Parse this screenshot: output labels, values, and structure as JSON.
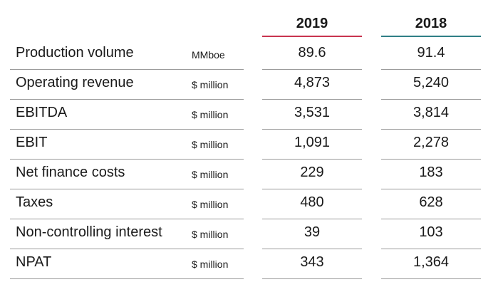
{
  "columns": [
    {
      "label": "2019",
      "accent": "#c8344f"
    },
    {
      "label": "2018",
      "accent": "#2f7f86"
    }
  ],
  "rows": [
    {
      "label": "Production volume",
      "unit": "MMboe",
      "v2019": "89.6",
      "v2018": "91.4"
    },
    {
      "label": "Operating revenue",
      "unit": "$ million",
      "v2019": "4,873",
      "v2018": "5,240"
    },
    {
      "label": "EBITDA",
      "unit": "$ million",
      "v2019": "3,531",
      "v2018": "3,814"
    },
    {
      "label": "EBIT",
      "unit": "$ million",
      "v2019": "1,091",
      "v2018": "2,278"
    },
    {
      "label": "Net finance costs",
      "unit": "$ million",
      "v2019": "229",
      "v2018": "183"
    },
    {
      "label": "Taxes",
      "unit": "$ million",
      "v2019": "480",
      "v2018": "628"
    },
    {
      "label": "Non-controlling interest",
      "unit": "$ million",
      "v2019": "39",
      "v2018": "103"
    },
    {
      "label": "NPAT",
      "unit": "$ million",
      "v2019": "343",
      "v2018": "1,364"
    }
  ]
}
